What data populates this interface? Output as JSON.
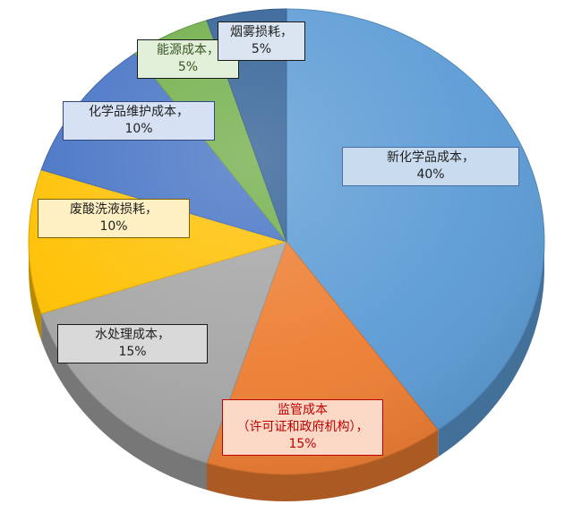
{
  "chart_data": {
    "type": "pie",
    "title": "",
    "categories": [
      "新化学品成本",
      "监管成本（许可证和政府机构）",
      "水处理成本",
      "废酸洗液损耗",
      "化学品维护成本",
      "能源成本",
      "烟雾损耗"
    ],
    "values": [
      40,
      15,
      15,
      10,
      10,
      5,
      5
    ],
    "colors": [
      "#5b9bd5",
      "#ed7d31",
      "#a5a5a5",
      "#ffc000",
      "#4472c4",
      "#70ad47",
      "#2f5f95"
    ],
    "labels": [
      {
        "name": "新化学品成本，",
        "value": "40%"
      },
      {
        "name": "监管成本",
        "name2": "（许可证和政府机构），",
        "value": "15%"
      },
      {
        "name": "水处理成本，",
        "value": "15%"
      },
      {
        "name": "废酸洗液损耗，",
        "value": "10%"
      },
      {
        "name": "化学品维护成本，",
        "value": "10%"
      },
      {
        "name": "能源成本，",
        "value": "5%"
      },
      {
        "name": "烟雾损耗，",
        "value": "5%"
      }
    ],
    "legend": "none"
  }
}
